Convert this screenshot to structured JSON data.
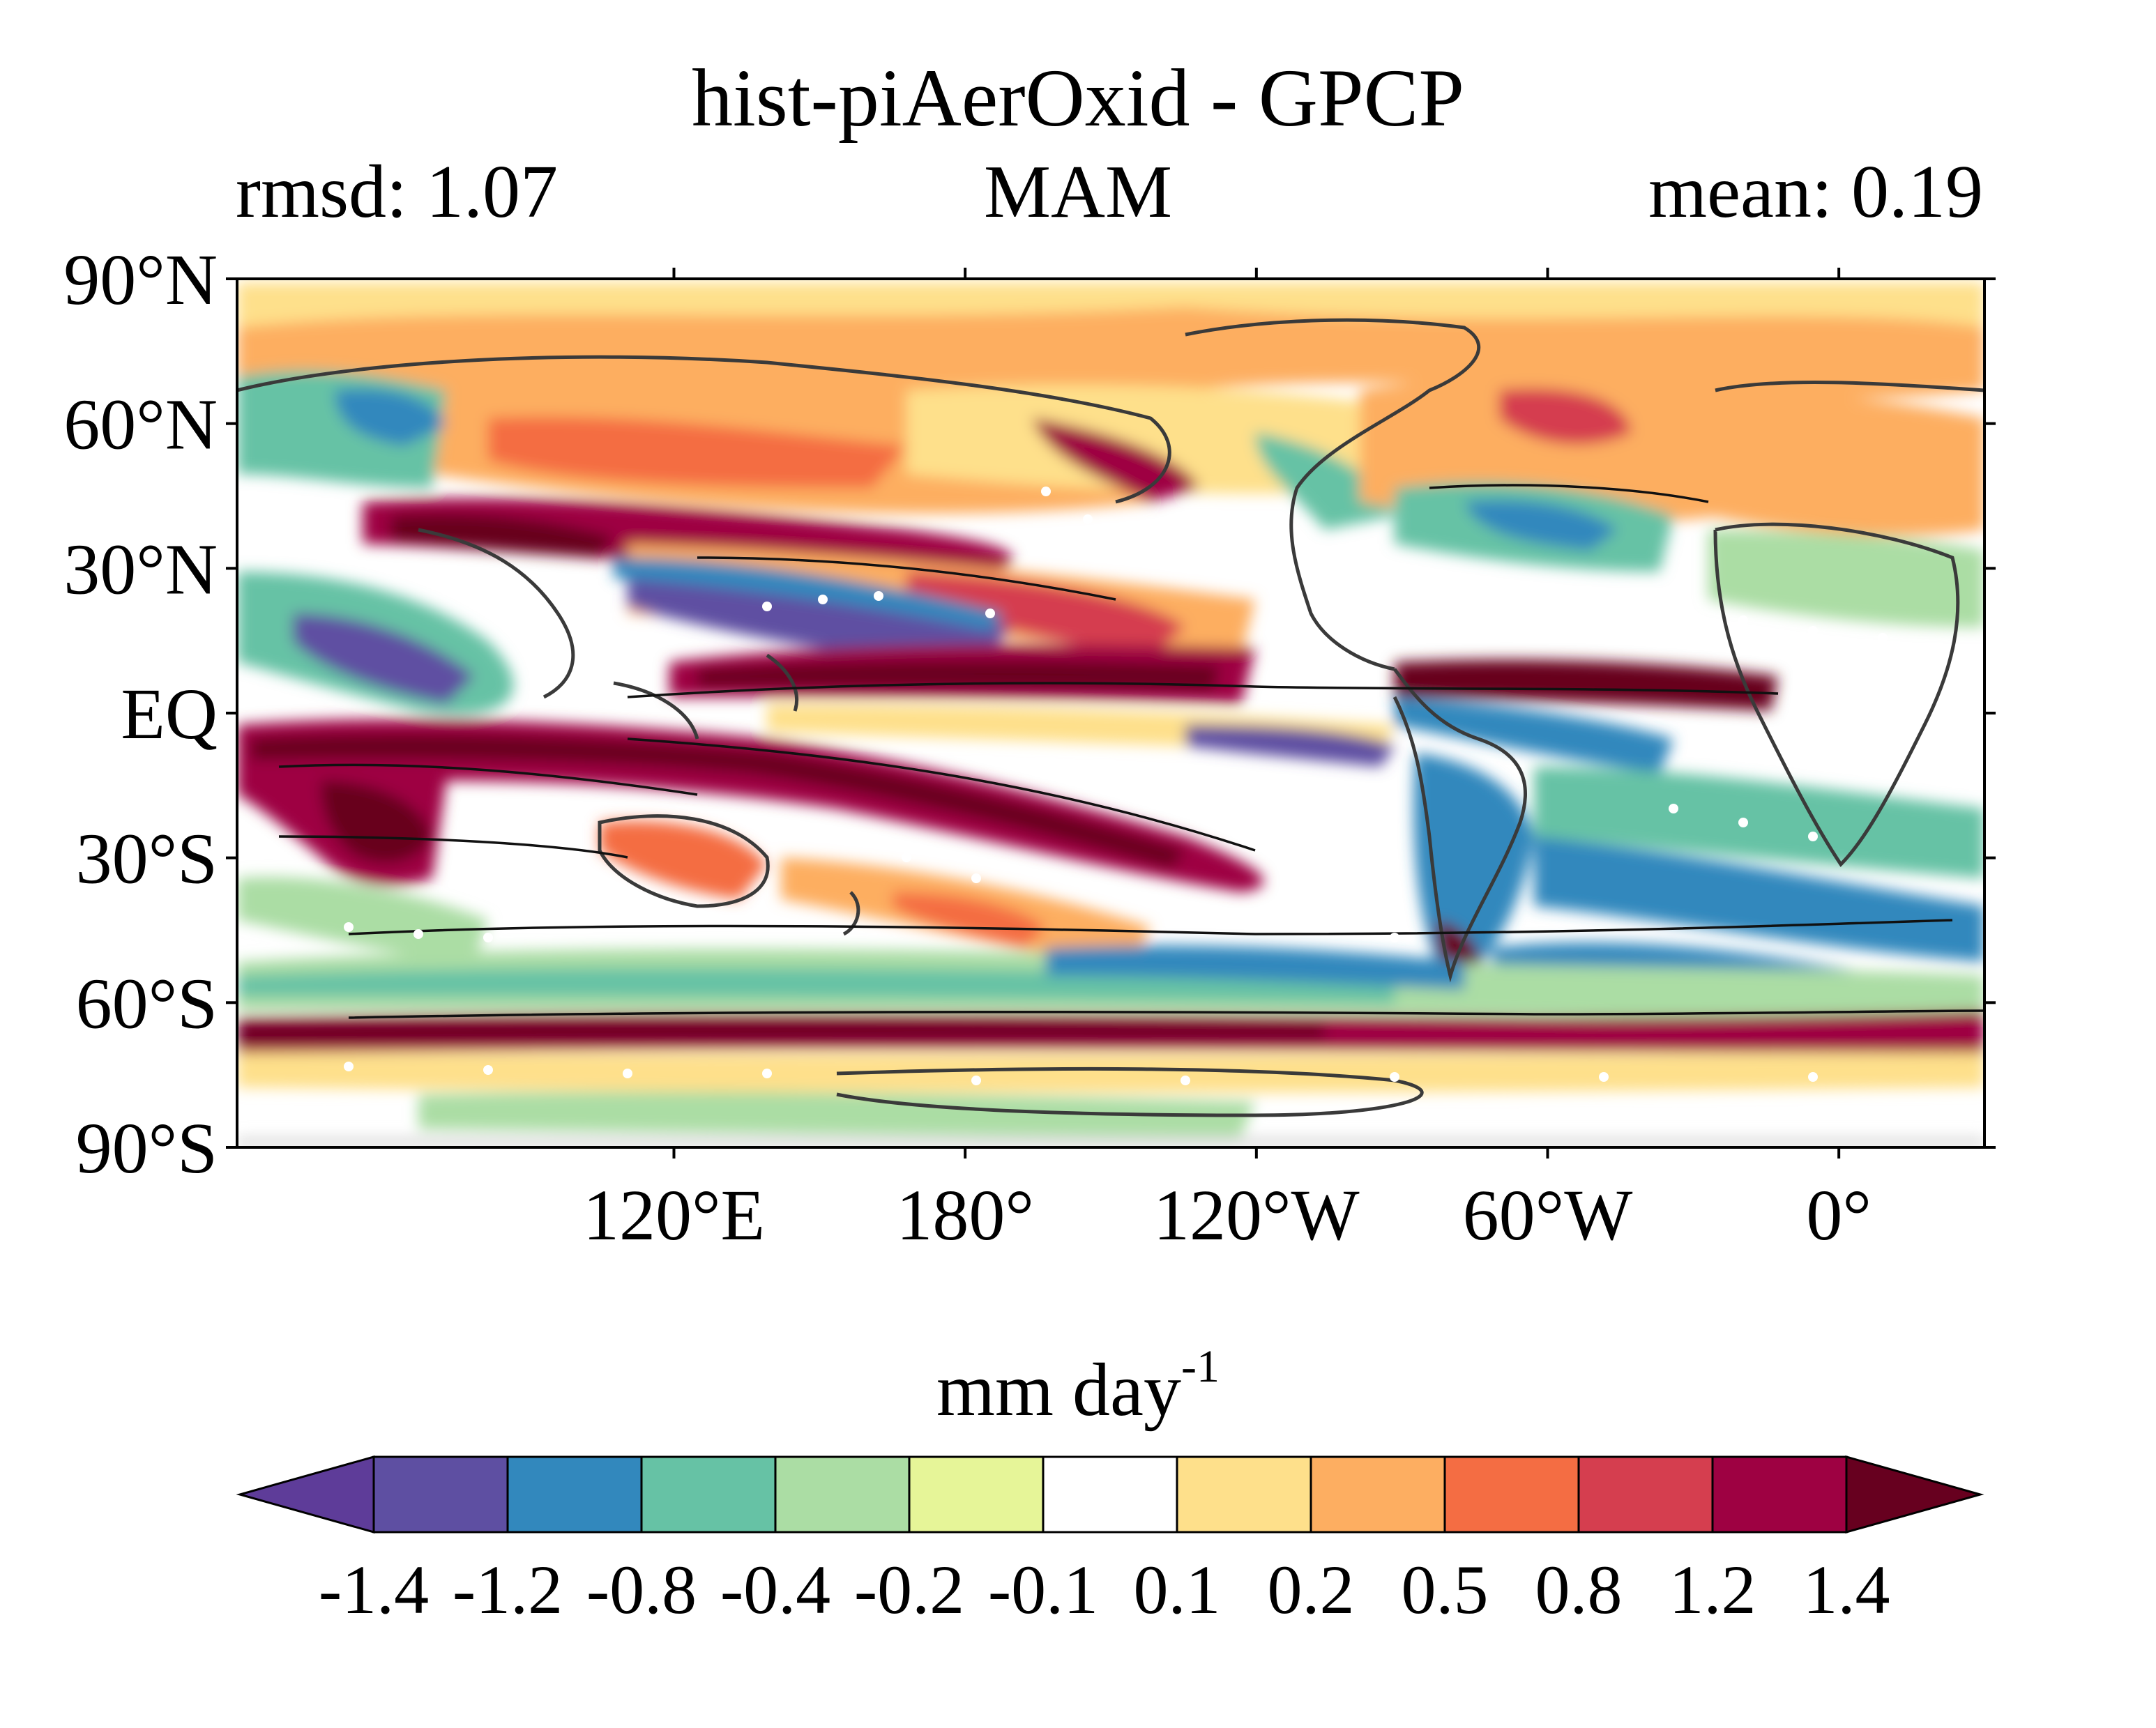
{
  "figure": {
    "title": "hist-piAerOxid - GPCP",
    "left_label": "rmsd: 1.07",
    "center_label": "MAM",
    "right_label": "mean: 0.19",
    "units_base": "mm day",
    "units_exp": "-1"
  },
  "map": {
    "projection": "equirectangular",
    "lon_range": [
      30,
      390
    ],
    "lat_range": [
      -90,
      90
    ],
    "lat_ticks": [
      {
        "value": 90,
        "label": "90°N"
      },
      {
        "value": 60,
        "label": "60°N"
      },
      {
        "value": 30,
        "label": "30°N"
      },
      {
        "value": 0,
        "label": "EQ"
      },
      {
        "value": -30,
        "label": "30°S"
      },
      {
        "value": -60,
        "label": "60°S"
      },
      {
        "value": -90,
        "label": "90°S"
      }
    ],
    "lon_ticks": [
      {
        "value": 120,
        "label": "120°E"
      },
      {
        "value": 180,
        "label": "180°"
      },
      {
        "value": 240,
        "label": "120°W"
      },
      {
        "value": 300,
        "label": "60°W"
      },
      {
        "value": 360,
        "label": "0°"
      }
    ]
  },
  "colorbar": {
    "levels": [
      "-1.4",
      "-1.2",
      "-0.8",
      "-0.4",
      "-0.2",
      "-0.1",
      "0.1",
      "0.2",
      "0.5",
      "0.8",
      "1.2",
      "1.4"
    ],
    "colors": [
      "#5e3c99",
      "#5e4fa2",
      "#3288bd",
      "#66c2a5",
      "#abdda4",
      "#e6f598",
      "#ffffff",
      "#fee08b",
      "#fdae61",
      "#f46d43",
      "#d53e4f",
      "#9e0142",
      "#67001f"
    ],
    "extend": "both"
  }
}
